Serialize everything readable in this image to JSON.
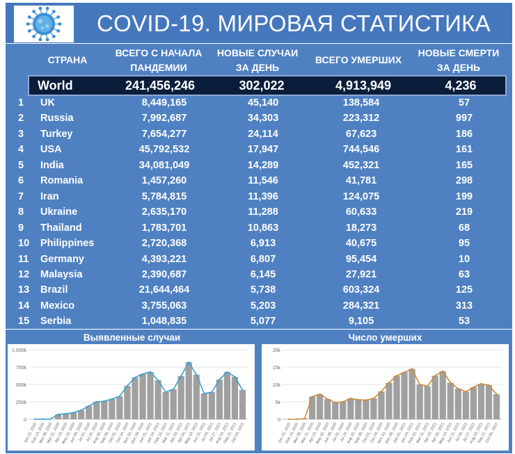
{
  "title": "COVID-19. МИРОВАЯ СТАТИСТИКА",
  "icons": {
    "logo": "virus-icon"
  },
  "colors": {
    "header_bg": "#4577bd",
    "table_bg": "#4f81c2",
    "world_bg": "#0a1d3a",
    "cases_line": "#3a9fd0",
    "deaths_line": "#c98b3a",
    "bars": "#a0a0a0"
  },
  "headers": {
    "country": "СТРАНА",
    "total_cases": [
      "ВСЕГО С НАЧАЛА",
      "ПАНДЕМИИ"
    ],
    "new_cases": [
      "НОВЫЕ СЛУЧАИ",
      "ЗА ДЕНЬ"
    ],
    "total_deaths": "ВСЕГО УМЕРШИХ",
    "new_deaths": [
      "НОВЫЕ СМЕРТИ",
      "ЗА ДЕНЬ"
    ]
  },
  "world": {
    "name": "World",
    "total_cases": "241,456,246",
    "new_cases": "302,022",
    "total_deaths": "4,913,949",
    "new_deaths": "4,236"
  },
  "rows": [
    {
      "rank": "1",
      "country": "UK",
      "total_cases": "8,449,165",
      "new_cases": "45,140",
      "total_deaths": "138,584",
      "new_deaths": "57"
    },
    {
      "rank": "2",
      "country": "Russia",
      "total_cases": "7,992,687",
      "new_cases": "34,303",
      "total_deaths": "223,312",
      "new_deaths": "997"
    },
    {
      "rank": "3",
      "country": "Turkey",
      "total_cases": "7,654,277",
      "new_cases": "24,114",
      "total_deaths": "67,623",
      "new_deaths": "186"
    },
    {
      "rank": "4",
      "country": "USA",
      "total_cases": "45,792,532",
      "new_cases": "17,947",
      "total_deaths": "744,546",
      "new_deaths": "161"
    },
    {
      "rank": "5",
      "country": "India",
      "total_cases": "34,081,049",
      "new_cases": "14,289",
      "total_deaths": "452,321",
      "new_deaths": "165"
    },
    {
      "rank": "6",
      "country": "Romania",
      "total_cases": "1,457,260",
      "new_cases": "11,546",
      "total_deaths": "41,781",
      "new_deaths": "298"
    },
    {
      "rank": "7",
      "country": "Iran",
      "total_cases": "5,784,815",
      "new_cases": "11,396",
      "total_deaths": "124,075",
      "new_deaths": "199"
    },
    {
      "rank": "8",
      "country": "Ukraine",
      "total_cases": "2,635,170",
      "new_cases": "11,288",
      "total_deaths": "60,633",
      "new_deaths": "219"
    },
    {
      "rank": "9",
      "country": "Thailand",
      "total_cases": "1,783,701",
      "new_cases": "10,863",
      "total_deaths": "18,273",
      "new_deaths": "68"
    },
    {
      "rank": "10",
      "country": "Philippines",
      "total_cases": "2,720,368",
      "new_cases": "6,913",
      "total_deaths": "40,675",
      "new_deaths": "95"
    },
    {
      "rank": "11",
      "country": "Germany",
      "total_cases": "4,393,221",
      "new_cases": "6,807",
      "total_deaths": "95,454",
      "new_deaths": "10"
    },
    {
      "rank": "12",
      "country": "Malaysia",
      "total_cases": "2,390,687",
      "new_cases": "6,145",
      "total_deaths": "27,921",
      "new_deaths": "63"
    },
    {
      "rank": "13",
      "country": "Brazil",
      "total_cases": "21,644,464",
      "new_cases": "5,738",
      "total_deaths": "603,324",
      "new_deaths": "125"
    },
    {
      "rank": "14",
      "country": "Mexico",
      "total_cases": "3,755,063",
      "new_cases": "5,203",
      "total_deaths": "284,321",
      "new_deaths": "313"
    },
    {
      "rank": "15",
      "country": "Serbia",
      "total_cases": "1,048,835",
      "new_cases": "5,077",
      "total_deaths": "9,105",
      "new_deaths": "53"
    }
  ],
  "chart_data": [
    {
      "type": "bar",
      "title": "Выявленные случаи",
      "ylim": [
        0,
        1000000
      ],
      "y_ticks": [
        "0",
        "250k",
        "500k",
        "750k",
        "1,000k"
      ],
      "x": [
        "Jan 22, 2020",
        "Feb 14, 2020",
        "Mar 08, 2020",
        "Mar 31, 2020",
        "Apr 23, 2020",
        "May 16, 2020",
        "Jun 08, 2020",
        "Jul 01, 2020",
        "Jul 24, 2020",
        "Aug 16, 2020",
        "Sep 08, 2020",
        "Oct 01, 2020",
        "Oct 24, 2020",
        "Nov 16, 2020",
        "Dec 09, 2020",
        "Jan 01, 2021",
        "Jan 24, 2021",
        "Feb 16, 2021",
        "Mar 11, 2021",
        "Apr 03, 2021",
        "Apr 26, 2021",
        "May 19, 2021",
        "Jun 11, 2021",
        "Jul 04, 2021",
        "Jul 27, 2021",
        "Aug 19, 2021",
        "Sep 11, 2021",
        "Oct 04, 2021"
      ],
      "series": [
        {
          "values": [
            0,
            2000,
            3000,
            70000,
            80000,
            95000,
            130000,
            190000,
            250000,
            260000,
            290000,
            330000,
            480000,
            600000,
            650000,
            680000,
            560000,
            390000,
            430000,
            620000,
            820000,
            640000,
            370000,
            390000,
            570000,
            680000,
            610000,
            420000
          ]
        }
      ]
    },
    {
      "type": "bar",
      "title": "Число умерших",
      "ylim": [
        0,
        20000
      ],
      "y_ticks": [
        "0",
        "5k",
        "10k",
        "15k",
        "20k"
      ],
      "x": [
        "Jan 22, 2020",
        "Feb 14, 2020",
        "Mar 08, 2020",
        "Mar 31, 2020",
        "Apr 23, 2020",
        "May 16, 2020",
        "Jun 08, 2020",
        "Jul 01, 2020",
        "Jul 24, 2020",
        "Aug 16, 2020",
        "Sep 08, 2020",
        "Oct 01, 2020",
        "Oct 24, 2020",
        "Nov 16, 2020",
        "Dec 09, 2020",
        "Jan 01, 2021",
        "Jan 24, 2021",
        "Feb 16, 2021",
        "Mar 11, 2021",
        "Apr 03, 2021",
        "Apr 26, 2021",
        "May 19, 2021",
        "Jun 11, 2021",
        "Jul 04, 2021",
        "Jul 27, 2021",
        "Aug 19, 2021",
        "Sep 11, 2021",
        "Oct 04, 2021"
      ],
      "series": [
        {
          "values": [
            0,
            0,
            200,
            6500,
            7200,
            5800,
            4800,
            5000,
            6000,
            5600,
            5500,
            6000,
            8000,
            10500,
            12500,
            13500,
            14500,
            10000,
            9500,
            12500,
            13800,
            10500,
            8800,
            7900,
            9200,
            10200,
            9800,
            7200
          ]
        }
      ]
    }
  ]
}
